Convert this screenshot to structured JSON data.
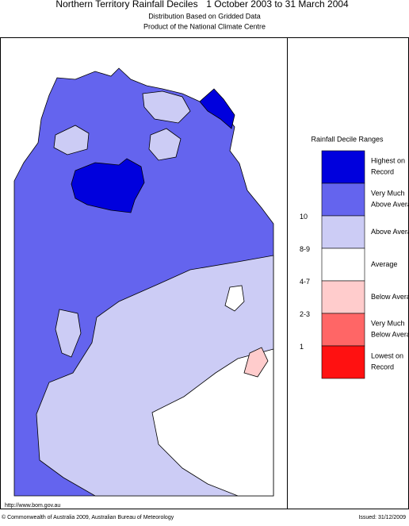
{
  "header": {
    "title": "Northern Territory Rainfall Deciles",
    "period": "1 October 2003 to 31 March 2004",
    "subtitle": "Distribution Based on Gridded Data",
    "subtitle2": "Product of the National Climate Centre"
  },
  "legend": {
    "title": "Rainfall Decile Ranges",
    "items": [
      {
        "label": "Highest on Record",
        "color": "#0000dd"
      },
      {
        "range": "10",
        "label": "Very Much Above Average",
        "color": "#6464ee"
      },
      {
        "range": "8-9",
        "label": "Above Average",
        "color": "#ccccf5"
      },
      {
        "range": "4-7",
        "label": "Average",
        "color": "#ffffff"
      },
      {
        "range": "2-3",
        "label": "Below Average",
        "color": "#ffcccc"
      },
      {
        "range": "1",
        "label": "Very Much Below Average",
        "color": "#ff6666"
      },
      {
        "label": "Lowest on Record",
        "color": "#ff1111"
      }
    ]
  },
  "footer": {
    "url": "http://www.bom.gov.au",
    "copyright": "© Commonwealth of Australia 2009, Australian Bureau of Meteorology",
    "issued": "Issued: 31/12/2009"
  }
}
